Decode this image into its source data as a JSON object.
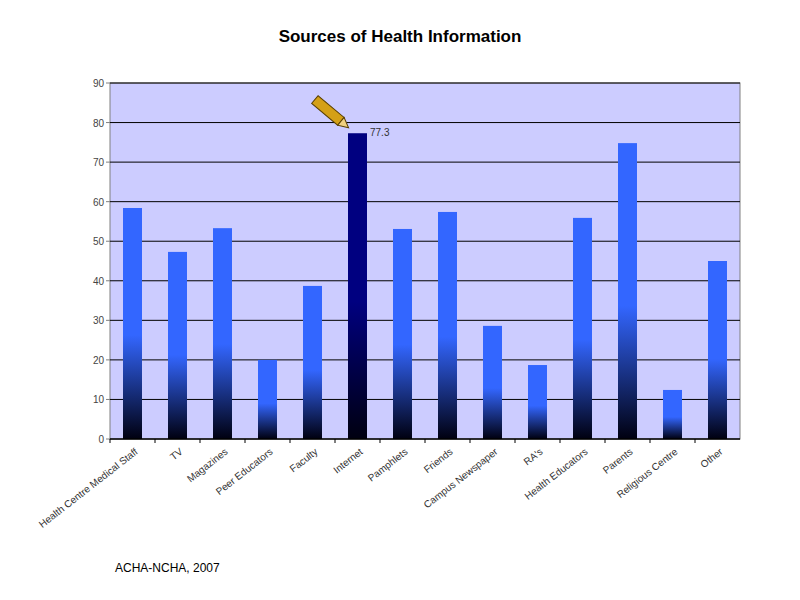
{
  "chart_data": {
    "type": "bar",
    "title": "Sources of Health Information",
    "categories": [
      "Health Centre Medical Staff",
      "TV",
      "Magazines",
      "Peer Educators",
      "Faculty",
      "Internet",
      "Pamphlets",
      "Friends",
      "Campus Newspaper",
      "RA's",
      "Health Educators",
      "Parents",
      "Religious Centre",
      "Other"
    ],
    "values": [
      58.4,
      47.3,
      53.3,
      20.0,
      38.7,
      77.3,
      53.1,
      57.4,
      28.6,
      18.7,
      55.9,
      74.8,
      12.4,
      45.0
    ],
    "colors": [
      "#3366ff",
      "#3366ff",
      "#3366ff",
      "#3366ff",
      "#3366ff",
      "#000080",
      "#3366ff",
      "#3366ff",
      "#3366ff",
      "#3366ff",
      "#3366ff",
      "#3366ff",
      "#3366ff",
      "#3366ff"
    ],
    "annotations": [
      {
        "text": "77.3",
        "x": "Internet",
        "y": 77.3
      }
    ],
    "source": "ACHA-NCHA, 2007",
    "ylim": [
      0,
      90
    ],
    "yticks": [
      0,
      10,
      20,
      30,
      40,
      50,
      60,
      70,
      80,
      90
    ],
    "grid": true
  }
}
